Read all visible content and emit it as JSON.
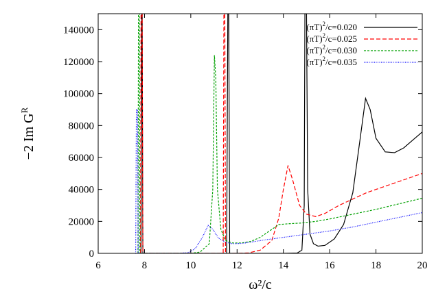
{
  "chart_data": {
    "type": "line",
    "xlabel": "ω²/c",
    "ylabel": "−2 Im G",
    "ylabel_sup": "R",
    "xlim": [
      6,
      20
    ],
    "ylim": [
      0,
      150000
    ],
    "xticks": [
      6,
      8,
      10,
      12,
      14,
      16,
      18,
      20
    ],
    "yticks": [
      0,
      20000,
      40000,
      60000,
      80000,
      100000,
      120000,
      140000
    ],
    "grid": false,
    "legend_position": "top-right",
    "series": [
      {
        "name": "(πT)²/c=0.020",
        "legend_base": "(πT)",
        "legend_sup": "2",
        "legend_rest": "/c=0.020",
        "color": "#000000",
        "dash": "",
        "points": [
          [
            7.85,
            0
          ],
          [
            7.88,
            150000
          ],
          [
            7.9,
            150000
          ],
          [
            7.93,
            0
          ],
          [
            11.55,
            0
          ],
          [
            11.6,
            150000
          ],
          [
            11.64,
            150000
          ],
          [
            11.68,
            0
          ],
          [
            12.0,
            0
          ],
          [
            13.0,
            0
          ],
          [
            14.0,
            0
          ],
          [
            14.6,
            200
          ],
          [
            14.8,
            2000
          ],
          [
            14.9,
            30000
          ],
          [
            14.93,
            150000
          ],
          [
            15.0,
            150000
          ],
          [
            15.05,
            40000
          ],
          [
            15.15,
            12000
          ],
          [
            15.3,
            6000
          ],
          [
            15.5,
            4500
          ],
          [
            15.8,
            5000
          ],
          [
            16.2,
            9000
          ],
          [
            16.6,
            18000
          ],
          [
            17.0,
            38000
          ],
          [
            17.3,
            70000
          ],
          [
            17.55,
            97000
          ],
          [
            17.75,
            90000
          ],
          [
            18.0,
            72000
          ],
          [
            18.4,
            63500
          ],
          [
            18.8,
            63000
          ],
          [
            19.2,
            66000
          ],
          [
            19.6,
            71000
          ],
          [
            20.0,
            76000
          ]
        ]
      },
      {
        "name": "(πT)²/c=0.025",
        "legend_base": "(πT)",
        "legend_sup": "2",
        "legend_rest": "/c=0.025",
        "color": "#ff0000",
        "dash": "6,3",
        "points": [
          [
            7.83,
            0
          ],
          [
            7.85,
            150000
          ],
          [
            7.9,
            150000
          ],
          [
            7.93,
            0
          ],
          [
            11.4,
            0
          ],
          [
            11.43,
            150000
          ],
          [
            11.47,
            150000
          ],
          [
            11.5,
            0
          ],
          [
            12.0,
            0
          ],
          [
            12.5,
            300
          ],
          [
            13.0,
            2000
          ],
          [
            13.5,
            8000
          ],
          [
            13.8,
            22000
          ],
          [
            14.0,
            40000
          ],
          [
            14.2,
            55000
          ],
          [
            14.4,
            46000
          ],
          [
            14.7,
            30000
          ],
          [
            15.0,
            24500
          ],
          [
            15.4,
            23000
          ],
          [
            15.8,
            25000
          ],
          [
            16.4,
            30000
          ],
          [
            17.0,
            34000
          ],
          [
            17.6,
            38000
          ],
          [
            18.2,
            41000
          ],
          [
            18.8,
            44000
          ],
          [
            19.4,
            47000
          ],
          [
            20.0,
            50000
          ]
        ]
      },
      {
        "name": "(πT)²/c=0.030",
        "legend_base": "(πT)",
        "legend_sup": "2",
        "legend_rest": "/c=0.030",
        "color": "#00a000",
        "dash": "3,2",
        "points": [
          [
            7.72,
            0
          ],
          [
            7.74,
            150000
          ],
          [
            7.78,
            150000
          ],
          [
            7.8,
            0
          ],
          [
            10.0,
            0
          ],
          [
            10.4,
            800
          ],
          [
            10.8,
            6000
          ],
          [
            10.95,
            40000
          ],
          [
            11.02,
            124000
          ],
          [
            11.08,
            110000
          ],
          [
            11.15,
            40000
          ],
          [
            11.3,
            15000
          ],
          [
            11.5,
            8000
          ],
          [
            11.8,
            6500
          ],
          [
            12.2,
            6500
          ],
          [
            12.6,
            7500
          ],
          [
            13.0,
            10000
          ],
          [
            13.4,
            14000
          ],
          [
            13.8,
            18000
          ],
          [
            14.2,
            18500
          ],
          [
            14.8,
            19000
          ],
          [
            15.4,
            20000
          ],
          [
            16.0,
            21500
          ],
          [
            17.0,
            24500
          ],
          [
            18.0,
            27500
          ],
          [
            19.0,
            31000
          ],
          [
            20.0,
            34500
          ]
        ]
      },
      {
        "name": "(πT)²/c=0.035",
        "legend_base": "(πT)",
        "legend_sup": "2",
        "legend_rest": "/c=0.035",
        "color": "#0000ff",
        "dash": "1,1.5",
        "points": [
          [
            7.62,
            0
          ],
          [
            7.65,
            90000
          ],
          [
            7.7,
            90000
          ],
          [
            7.73,
            0
          ],
          [
            9.5,
            0
          ],
          [
            9.9,
            500
          ],
          [
            10.2,
            3000
          ],
          [
            10.5,
            10000
          ],
          [
            10.75,
            17500
          ],
          [
            10.95,
            15000
          ],
          [
            11.2,
            9500
          ],
          [
            11.5,
            7000
          ],
          [
            11.8,
            6000
          ],
          [
            12.2,
            6200
          ],
          [
            12.6,
            7000
          ],
          [
            13.0,
            8000
          ],
          [
            13.5,
            9000
          ],
          [
            14.0,
            10000
          ],
          [
            14.5,
            11000
          ],
          [
            15.0,
            12000
          ],
          [
            16.0,
            14000
          ],
          [
            17.0,
            16500
          ],
          [
            18.0,
            19500
          ],
          [
            19.0,
            22500
          ],
          [
            20.0,
            25500
          ]
        ]
      }
    ]
  }
}
